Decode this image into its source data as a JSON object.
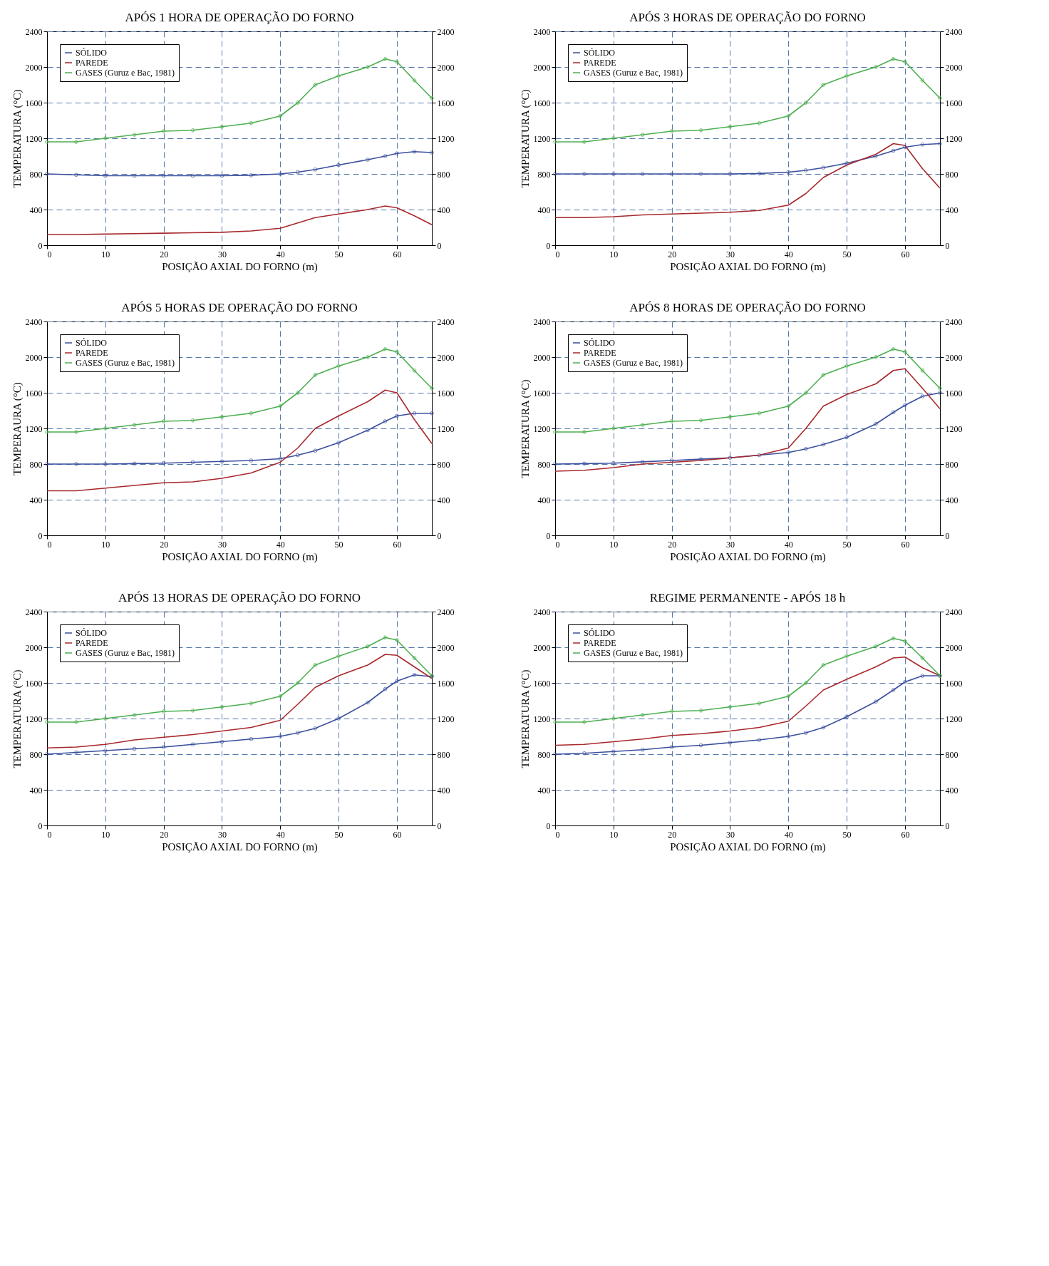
{
  "chart_data": [
    {
      "type": "line",
      "title": "APÓS 1 HORA DE OPERAÇÃO DO FORNO",
      "xlabel": "POSIÇÃO AXIAL DO FORNO (m)",
      "ylabel": "TEMPERATURA (°C)",
      "x": [
        0,
        5,
        10,
        15,
        20,
        25,
        30,
        35,
        40,
        43,
        46,
        50,
        55,
        58,
        60,
        63,
        66
      ],
      "xlim": [
        0,
        66
      ],
      "xticks": [
        0,
        10,
        20,
        30,
        40,
        50,
        60
      ],
      "ylim": [
        0,
        2400
      ],
      "yticks": [
        0,
        400,
        800,
        1200,
        1600,
        2000,
        2400
      ],
      "y2lim": [
        0,
        2400
      ],
      "y2ticks": [
        0,
        400,
        800,
        1200,
        1600,
        2000,
        2400
      ],
      "grid": true,
      "legend": "top left",
      "line_style": "solid",
      "series": [
        {
          "name": "SÓLIDO",
          "color": "#3a4f9e",
          "marker": "circle",
          "values": [
            800,
            790,
            780,
            780,
            780,
            780,
            780,
            785,
            800,
            820,
            850,
            900,
            960,
            1000,
            1030,
            1050,
            1040
          ]
        },
        {
          "name": "PAREDE",
          "color": "#a8282c",
          "marker": "none",
          "values": [
            120,
            120,
            125,
            130,
            135,
            140,
            145,
            160,
            190,
            250,
            310,
            350,
            400,
            440,
            420,
            330,
            230
          ]
        },
        {
          "name": "GASES (Guruz e Bac, 1981)",
          "color": "#4caf50",
          "marker": "cross",
          "values": [
            1160,
            1160,
            1200,
            1240,
            1280,
            1290,
            1330,
            1370,
            1450,
            1600,
            1800,
            1900,
            2000,
            2090,
            2060,
            1850,
            1650
          ]
        }
      ]
    },
    {
      "type": "line",
      "title": "APÓS 3 HORAS DE OPERAÇÃO DO FORNO",
      "xlabel": "POSIÇÃO AXIAL DO FORNO (m)",
      "ylabel": "TEMPERATURA (°C)",
      "x": [
        0,
        5,
        10,
        15,
        20,
        25,
        30,
        35,
        40,
        43,
        46,
        50,
        55,
        58,
        60,
        63,
        66
      ],
      "xlim": [
        0,
        66
      ],
      "xticks": [
        0,
        10,
        20,
        30,
        40,
        50,
        60
      ],
      "ylim": [
        0,
        2400
      ],
      "yticks": [
        0,
        400,
        800,
        1200,
        1600,
        2000,
        2400
      ],
      "y2lim": [
        0,
        2400
      ],
      "y2ticks": [
        0,
        400,
        800,
        1200,
        1600,
        2000,
        2400
      ],
      "grid": true,
      "legend": "top left",
      "line_style": "solid",
      "series": [
        {
          "name": "SÓLIDO",
          "color": "#3a4f9e",
          "marker": "circle",
          "values": [
            800,
            800,
            800,
            800,
            800,
            800,
            800,
            805,
            820,
            840,
            870,
            920,
            1000,
            1060,
            1100,
            1130,
            1140
          ]
        },
        {
          "name": "PAREDE",
          "color": "#a8282c",
          "marker": "none",
          "values": [
            310,
            310,
            320,
            340,
            350,
            360,
            370,
            390,
            450,
            580,
            760,
            900,
            1020,
            1140,
            1120,
            860,
            640
          ]
        },
        {
          "name": "GASES (Guruz e Bac, 1981)",
          "color": "#4caf50",
          "marker": "cross",
          "values": [
            1160,
            1160,
            1200,
            1240,
            1280,
            1290,
            1330,
            1370,
            1450,
            1600,
            1800,
            1900,
            2000,
            2090,
            2060,
            1850,
            1650
          ]
        }
      ]
    },
    {
      "type": "line",
      "title": "APÓS 5 HORAS DE OPERAÇÃO DO FORNO",
      "xlabel": "POSIÇÃO AXIAL DO FORNO (m)",
      "ylabel": "TEMPERAURA (°C)",
      "x": [
        0,
        5,
        10,
        15,
        20,
        25,
        30,
        35,
        40,
        43,
        46,
        50,
        55,
        58,
        60,
        63,
        66
      ],
      "xlim": [
        0,
        66
      ],
      "xticks": [
        0,
        10,
        20,
        30,
        40,
        50,
        60
      ],
      "ylim": [
        0,
        2400
      ],
      "yticks": [
        0,
        400,
        800,
        1200,
        1600,
        2000,
        2400
      ],
      "y2lim": [
        0,
        2400
      ],
      "y2ticks": [
        0,
        400,
        800,
        1200,
        1600,
        2000,
        2400
      ],
      "grid": true,
      "legend": "top left",
      "line_style": "solid",
      "series": [
        {
          "name": "SÓLIDO",
          "color": "#3a4f9e",
          "marker": "circle",
          "values": [
            800,
            800,
            800,
            805,
            810,
            820,
            830,
            840,
            860,
            900,
            950,
            1040,
            1180,
            1280,
            1340,
            1370,
            1370
          ]
        },
        {
          "name": "PAREDE",
          "color": "#a8282c",
          "marker": "none",
          "values": [
            500,
            500,
            530,
            560,
            590,
            600,
            640,
            700,
            820,
            980,
            1200,
            1340,
            1500,
            1630,
            1600,
            1300,
            1030
          ]
        },
        {
          "name": "GASES (Guruz e Bac, 1981)",
          "color": "#4caf50",
          "marker": "cross",
          "values": [
            1160,
            1160,
            1200,
            1240,
            1280,
            1290,
            1330,
            1370,
            1450,
            1600,
            1800,
            1900,
            2000,
            2090,
            2060,
            1850,
            1650
          ]
        }
      ]
    },
    {
      "type": "line",
      "title": "APÓS 8 HORAS DE OPERAÇÃO DO FORNO",
      "xlabel": "POSIÇÃO AXIAL DO FORNO (m)",
      "ylabel": "TEMPERATURA (°C)",
      "x": [
        0,
        5,
        10,
        15,
        20,
        25,
        30,
        35,
        40,
        43,
        46,
        50,
        55,
        58,
        60,
        63,
        66
      ],
      "xlim": [
        0,
        66
      ],
      "xticks": [
        0,
        10,
        20,
        30,
        40,
        50,
        60
      ],
      "ylim": [
        0,
        2400
      ],
      "yticks": [
        0,
        400,
        800,
        1200,
        1600,
        2000,
        2400
      ],
      "y2lim": [
        0,
        2400
      ],
      "y2ticks": [
        0,
        400,
        800,
        1200,
        1600,
        2000,
        2400
      ],
      "grid": true,
      "legend": "top left",
      "line_style": "solid",
      "series": [
        {
          "name": "SÓLIDO",
          "color": "#3a4f9e",
          "marker": "circle",
          "values": [
            800,
            805,
            810,
            825,
            840,
            855,
            870,
            900,
            930,
            970,
            1020,
            1100,
            1250,
            1380,
            1460,
            1560,
            1600
          ]
        },
        {
          "name": "PAREDE",
          "color": "#a8282c",
          "marker": "none",
          "values": [
            720,
            730,
            760,
            800,
            820,
            840,
            870,
            900,
            980,
            1200,
            1450,
            1580,
            1700,
            1850,
            1870,
            1650,
            1420
          ]
        },
        {
          "name": "GASES (Guruz e Bac, 1981)",
          "color": "#4caf50",
          "marker": "cross",
          "values": [
            1160,
            1160,
            1200,
            1240,
            1280,
            1290,
            1330,
            1370,
            1450,
            1600,
            1800,
            1900,
            2000,
            2090,
            2060,
            1850,
            1650
          ]
        }
      ]
    },
    {
      "type": "line",
      "title": "APÓS 13 HORAS DE OPERAÇÃO DO FORNO",
      "xlabel": "POSIÇÃO AXIAL DO FORNO (m)",
      "ylabel": "TEMPERATURA (°C)",
      "x": [
        0,
        5,
        10,
        15,
        20,
        25,
        30,
        35,
        40,
        43,
        46,
        50,
        55,
        58,
        60,
        63,
        66
      ],
      "xlim": [
        0,
        66
      ],
      "xticks": [
        0,
        10,
        20,
        30,
        40,
        50,
        60
      ],
      "ylim": [
        0,
        2400
      ],
      "yticks": [
        0,
        400,
        800,
        1200,
        1600,
        2000,
        2400
      ],
      "y2lim": [
        0,
        2400
      ],
      "y2ticks": [
        0,
        400,
        800,
        1200,
        1600,
        2000,
        2400
      ],
      "grid": true,
      "legend": "top left",
      "line_style": "solid",
      "series": [
        {
          "name": "SÓLIDO",
          "color": "#3a4f9e",
          "marker": "circle",
          "values": [
            800,
            820,
            840,
            860,
            880,
            910,
            940,
            970,
            1000,
            1040,
            1090,
            1200,
            1380,
            1530,
            1620,
            1690,
            1670
          ]
        },
        {
          "name": "PAREDE",
          "color": "#a8282c",
          "marker": "none",
          "values": [
            870,
            880,
            910,
            960,
            990,
            1020,
            1060,
            1100,
            1180,
            1360,
            1550,
            1680,
            1800,
            1920,
            1910,
            1780,
            1650
          ]
        },
        {
          "name": "GASES (Guruz e Bac, 1981)",
          "color": "#4caf50",
          "marker": "cross",
          "values": [
            1160,
            1160,
            1200,
            1240,
            1280,
            1290,
            1330,
            1370,
            1450,
            1600,
            1800,
            1900,
            2010,
            2110,
            2080,
            1880,
            1680
          ]
        }
      ]
    },
    {
      "type": "line",
      "title": "REGIME PERMANENTE - APÓS 18 h",
      "xlabel": "POSIÇÃO AXIAL DO FORNO (m)",
      "ylabel": "TEMPERATURA (°C)",
      "x": [
        0,
        5,
        10,
        15,
        20,
        25,
        30,
        35,
        40,
        43,
        46,
        50,
        55,
        58,
        60,
        63,
        66
      ],
      "xlim": [
        0,
        66
      ],
      "xticks": [
        0,
        10,
        20,
        30,
        40,
        50,
        60
      ],
      "ylim": [
        0,
        2400
      ],
      "yticks": [
        0,
        400,
        800,
        1200,
        1600,
        2000,
        2400
      ],
      "y2lim": [
        0,
        2400
      ],
      "y2ticks": [
        0,
        400,
        800,
        1200,
        1600,
        2000,
        2400
      ],
      "grid": true,
      "legend": "top left",
      "line_style": "solid",
      "series": [
        {
          "name": "SÓLIDO",
          "color": "#3a4f9e",
          "marker": "circle",
          "values": [
            800,
            810,
            830,
            850,
            880,
            900,
            930,
            960,
            1000,
            1040,
            1100,
            1220,
            1390,
            1520,
            1610,
            1680,
            1680
          ]
        },
        {
          "name": "PAREDE",
          "color": "#a8282c",
          "marker": "none",
          "values": [
            900,
            910,
            940,
            970,
            1010,
            1030,
            1060,
            1100,
            1170,
            1340,
            1520,
            1640,
            1780,
            1880,
            1890,
            1770,
            1680
          ]
        },
        {
          "name": "GASES (Guruz e Bac, 1981)",
          "color": "#4caf50",
          "marker": "cross",
          "values": [
            1160,
            1160,
            1200,
            1240,
            1280,
            1290,
            1330,
            1370,
            1450,
            1600,
            1800,
            1900,
            2010,
            2100,
            2070,
            1880,
            1680
          ]
        }
      ]
    }
  ]
}
